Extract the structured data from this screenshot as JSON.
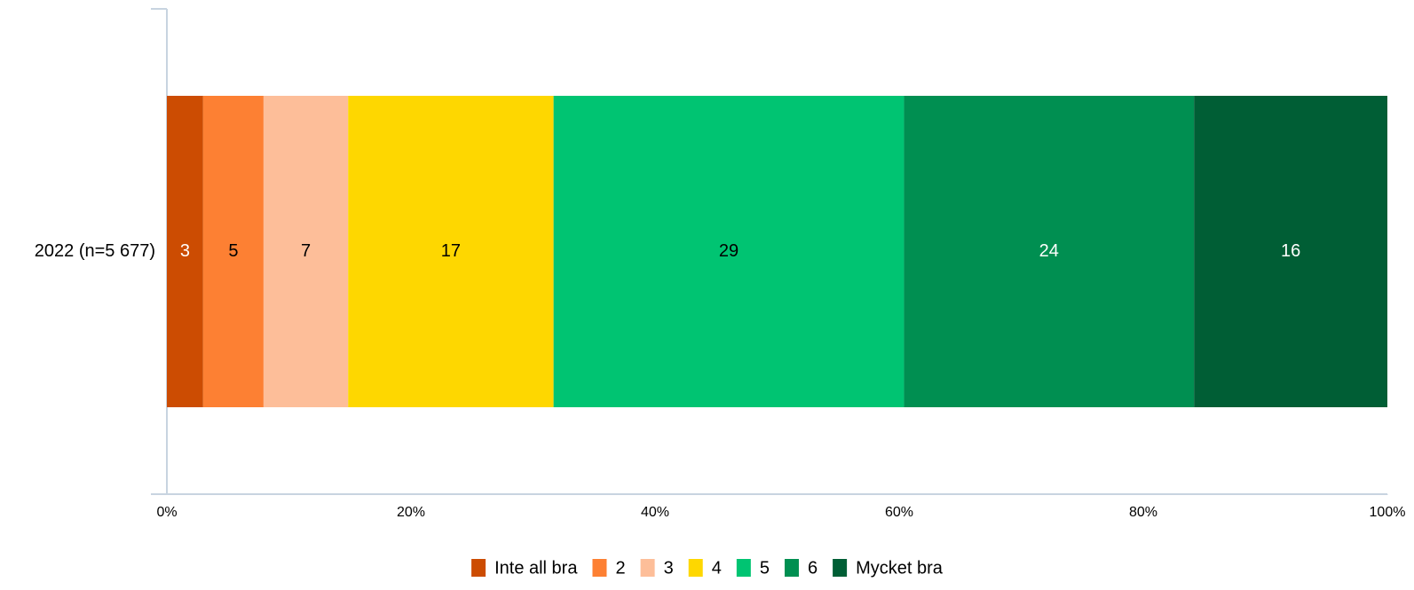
{
  "chart_data": {
    "type": "bar",
    "orientation": "horizontal",
    "stack": "percent",
    "categories": [
      "2022 (n=5 677)"
    ],
    "series": [
      {
        "name": "Inte all bra",
        "color": "#cc4c02",
        "label_color": "#ffffff",
        "values": [
          3
        ]
      },
      {
        "name": "2",
        "color": "#fd8033",
        "label_color": "#000000",
        "values": [
          5
        ]
      },
      {
        "name": "3",
        "color": "#fdbe99",
        "label_color": "#000000",
        "values": [
          7
        ]
      },
      {
        "name": "4",
        "color": "#fed700",
        "label_color": "#000000",
        "values": [
          17
        ]
      },
      {
        "name": "5",
        "color": "#00c472",
        "label_color": "#000000",
        "values": [
          29
        ]
      },
      {
        "name": "6",
        "color": "#008f51",
        "label_color": "#ffffff",
        "values": [
          24
        ]
      },
      {
        "name": "Mycket bra",
        "color": "#005e35",
        "label_color": "#ffffff",
        "values": [
          16
        ]
      }
    ],
    "xlim": [
      0,
      100
    ],
    "xticks": [
      {
        "value": 0,
        "label": "0%"
      },
      {
        "value": 20,
        "label": "20%"
      },
      {
        "value": 40,
        "label": "40%"
      },
      {
        "value": 60,
        "label": "60%"
      },
      {
        "value": 80,
        "label": "80%"
      },
      {
        "value": 100,
        "label": "100%"
      }
    ],
    "legend": "bottom"
  }
}
